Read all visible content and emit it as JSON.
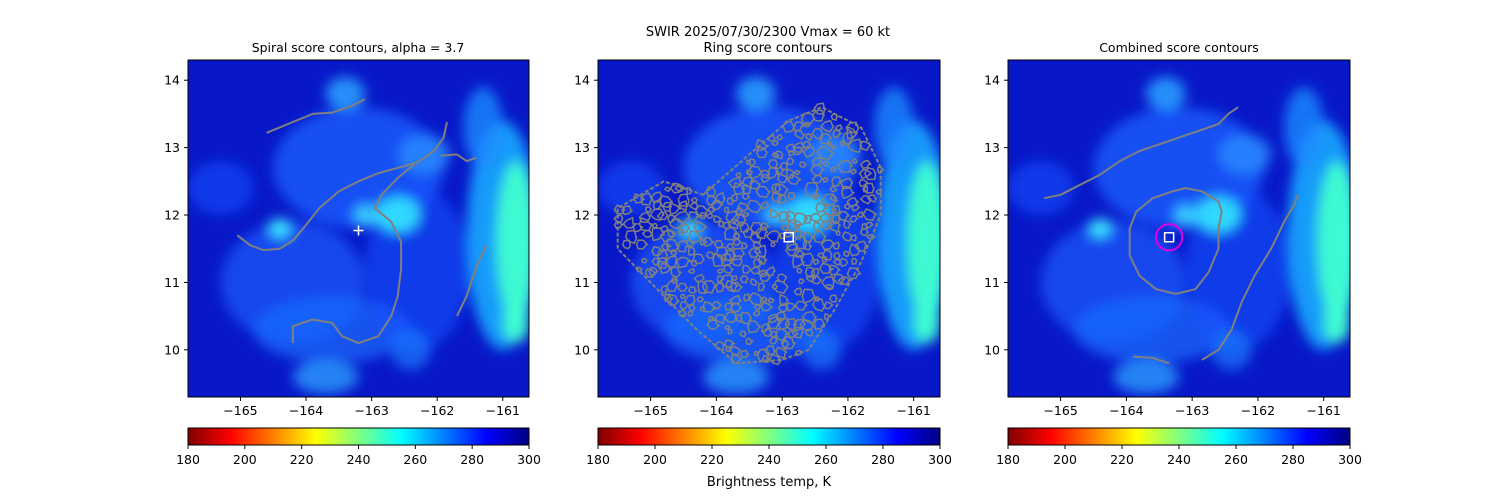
{
  "suptitle": {
    "line1": "SWIR  2025/07/30/2300    Vmax = 60 kt",
    "line2": "Ring score contours"
  },
  "colorbar_label": "Brightness temp, K",
  "colors": {
    "contour": "#808080",
    "marker": "#ffffff",
    "circle": "#e000e0"
  },
  "chart_data": [
    {
      "type": "heatmap",
      "title": "Spiral score contours, alpha =  3.7",
      "xlim": [
        -165.8,
        -160.6
      ],
      "ylim": [
        9.3,
        14.3
      ],
      "x_ticks": [
        -165,
        -164,
        -163,
        -162,
        -161
      ],
      "y_ticks": [
        10,
        11,
        12,
        13,
        14
      ],
      "colorbar": {
        "range": [
          180,
          300
        ],
        "ticks": [
          180,
          200,
          220,
          240,
          260,
          280,
          300
        ],
        "colormap": "jet"
      },
      "center_marker": {
        "type": "plus",
        "x": -163.2,
        "y": 11.77
      },
      "contour_lines": [
        [
          [
            -164.6,
            13.22
          ],
          [
            -164.2,
            13.38
          ],
          [
            -163.9,
            13.5
          ],
          [
            -163.6,
            13.52
          ],
          [
            -163.3,
            13.62
          ],
          [
            -163.1,
            13.72
          ]
        ],
        [
          [
            -165.05,
            11.7
          ],
          [
            -164.85,
            11.55
          ],
          [
            -164.65,
            11.48
          ],
          [
            -164.4,
            11.5
          ],
          [
            -164.2,
            11.62
          ],
          [
            -164.0,
            11.85
          ],
          [
            -163.8,
            12.1
          ],
          [
            -163.5,
            12.35
          ],
          [
            -163.2,
            12.5
          ],
          [
            -162.9,
            12.62
          ],
          [
            -162.6,
            12.7
          ],
          [
            -162.3,
            12.78
          ],
          [
            -162.05,
            12.95
          ],
          [
            -161.9,
            13.15
          ],
          [
            -161.85,
            13.38
          ]
        ],
        [
          [
            -161.95,
            12.88
          ],
          [
            -161.7,
            12.9
          ],
          [
            -161.55,
            12.8
          ],
          [
            -161.4,
            12.85
          ]
        ],
        [
          [
            -164.2,
            10.1
          ],
          [
            -164.2,
            10.35
          ],
          [
            -163.9,
            10.45
          ],
          [
            -163.6,
            10.4
          ],
          [
            -163.45,
            10.2
          ],
          [
            -163.2,
            10.1
          ],
          [
            -162.9,
            10.2
          ],
          [
            -162.7,
            10.5
          ],
          [
            -162.6,
            10.8
          ],
          [
            -162.55,
            11.2
          ],
          [
            -162.55,
            11.6
          ],
          [
            -162.7,
            11.9
          ],
          [
            -162.95,
            12.1
          ],
          [
            -162.85,
            12.3
          ],
          [
            -162.6,
            12.55
          ],
          [
            -162.35,
            12.75
          ]
        ],
        [
          [
            -161.7,
            10.5
          ],
          [
            -161.55,
            10.8
          ],
          [
            -161.45,
            11.1
          ],
          [
            -161.35,
            11.35
          ],
          [
            -161.25,
            11.55
          ]
        ]
      ]
    },
    {
      "type": "heatmap",
      "title": "",
      "xlim": [
        -165.8,
        -160.6
      ],
      "ylim": [
        9.3,
        14.3
      ],
      "x_ticks": [
        -165,
        -164,
        -163,
        -162,
        -161
      ],
      "y_ticks": [
        10,
        11,
        12,
        13,
        14
      ],
      "colorbar": {
        "range": [
          180,
          300
        ],
        "ticks": [
          180,
          200,
          220,
          240,
          260,
          280,
          300
        ],
        "colormap": "jet"
      },
      "center_marker": {
        "type": "square",
        "x": -162.9,
        "y": 11.67
      },
      "ring_region_outline": [
        [
          -164.2,
          12.3
        ],
        [
          -163.5,
          12.9
        ],
        [
          -162.9,
          13.4
        ],
        [
          -162.4,
          13.6
        ],
        [
          -161.8,
          13.3
        ],
        [
          -161.5,
          12.7
        ],
        [
          -161.5,
          12.0
        ],
        [
          -161.8,
          11.3
        ],
        [
          -162.2,
          10.6
        ],
        [
          -162.6,
          10.0
        ],
        [
          -163.0,
          9.85
        ],
        [
          -163.7,
          9.8
        ],
        [
          -164.3,
          10.3
        ],
        [
          -164.9,
          10.9
        ],
        [
          -165.5,
          11.5
        ],
        [
          -165.5,
          12.1
        ],
        [
          -164.8,
          12.5
        ]
      ]
    },
    {
      "type": "heatmap",
      "title": "Combined score contours",
      "xlim": [
        -165.8,
        -160.6
      ],
      "ylim": [
        9.3,
        14.3
      ],
      "x_ticks": [
        -165,
        -164,
        -163,
        -162,
        -161
      ],
      "y_ticks": [
        10,
        11,
        12,
        13,
        14
      ],
      "colorbar": {
        "range": [
          180,
          300
        ],
        "ticks": [
          180,
          200,
          220,
          240,
          260,
          280,
          300
        ],
        "colormap": "jet"
      },
      "center_marker": {
        "type": "square",
        "x": -163.35,
        "y": 11.67
      },
      "circle_marker": {
        "x": -163.35,
        "y": 11.67,
        "radius": 0.2
      },
      "contour_lines": [
        [
          [
            -165.25,
            12.25
          ],
          [
            -165.0,
            12.3
          ],
          [
            -164.7,
            12.45
          ],
          [
            -164.4,
            12.6
          ],
          [
            -164.1,
            12.8
          ],
          [
            -163.8,
            12.95
          ],
          [
            -163.5,
            13.05
          ],
          [
            -163.2,
            13.15
          ],
          [
            -162.9,
            13.25
          ],
          [
            -162.6,
            13.35
          ],
          [
            -162.45,
            13.5
          ],
          [
            -162.3,
            13.6
          ]
        ],
        [
          [
            -163.3,
            12.35
          ],
          [
            -163.6,
            12.25
          ],
          [
            -163.85,
            12.05
          ],
          [
            -163.95,
            11.8
          ],
          [
            -163.95,
            11.4
          ],
          [
            -163.8,
            11.1
          ],
          [
            -163.55,
            10.9
          ],
          [
            -163.25,
            10.83
          ],
          [
            -162.95,
            10.9
          ],
          [
            -162.75,
            11.15
          ],
          [
            -162.6,
            11.5
          ],
          [
            -162.6,
            11.8
          ],
          [
            -162.55,
            12.05
          ],
          [
            -162.6,
            12.2
          ],
          [
            -162.85,
            12.35
          ],
          [
            -163.1,
            12.4
          ],
          [
            -163.3,
            12.35
          ]
        ],
        [
          [
            -162.85,
            9.85
          ],
          [
            -162.6,
            10.0
          ],
          [
            -162.4,
            10.3
          ],
          [
            -162.25,
            10.7
          ],
          [
            -162.05,
            11.1
          ],
          [
            -161.8,
            11.5
          ],
          [
            -161.6,
            11.9
          ],
          [
            -161.45,
            12.15
          ],
          [
            -161.4,
            12.3
          ]
        ],
        [
          [
            -163.9,
            9.9
          ],
          [
            -163.6,
            9.88
          ],
          [
            -163.35,
            9.8
          ]
        ]
      ]
    }
  ]
}
